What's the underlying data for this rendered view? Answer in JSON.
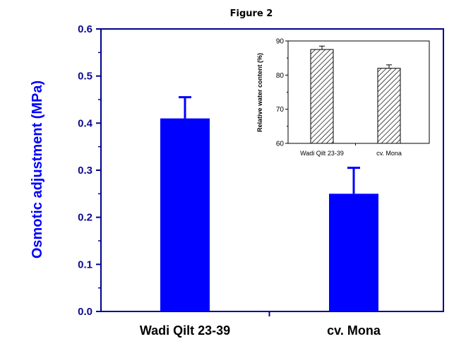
{
  "figure_title": "Figure 2",
  "chart_data": [
    {
      "type": "bar",
      "title": "",
      "xlabel": "",
      "ylabel": "Osmotic adjustment  (MPa)",
      "categories": [
        "Wadi Qilt 23-39",
        "cv. Mona"
      ],
      "values": [
        0.41,
        0.25
      ],
      "error_upper": [
        0.045,
        0.055
      ],
      "ylim": [
        0.0,
        0.6
      ],
      "yticks": [
        "0.0",
        "0.1",
        "0.2",
        "0.3",
        "0.4",
        "0.5",
        "0.6"
      ],
      "ytick_values": [
        0.0,
        0.1,
        0.2,
        0.3,
        0.4,
        0.5,
        0.6
      ],
      "grid": false,
      "colors": {
        "bar": "#0000ff",
        "axis": "#00008b",
        "ylabel": "#0000ff"
      }
    },
    {
      "type": "bar",
      "title": "",
      "xlabel": "",
      "ylabel": "Relative water content (%)",
      "categories": [
        "Wadi Qilt 23-39",
        "cv. Mona"
      ],
      "values": [
        87.5,
        82.0
      ],
      "error_upper": [
        1.0,
        1.0
      ],
      "ylim": [
        60,
        90
      ],
      "yticks": [
        "60",
        "70",
        "80",
        "90"
      ],
      "ytick_values": [
        60,
        70,
        80,
        90
      ],
      "fill": "hatched",
      "grid": false,
      "legend": "none",
      "placement": "inset top-right"
    }
  ]
}
